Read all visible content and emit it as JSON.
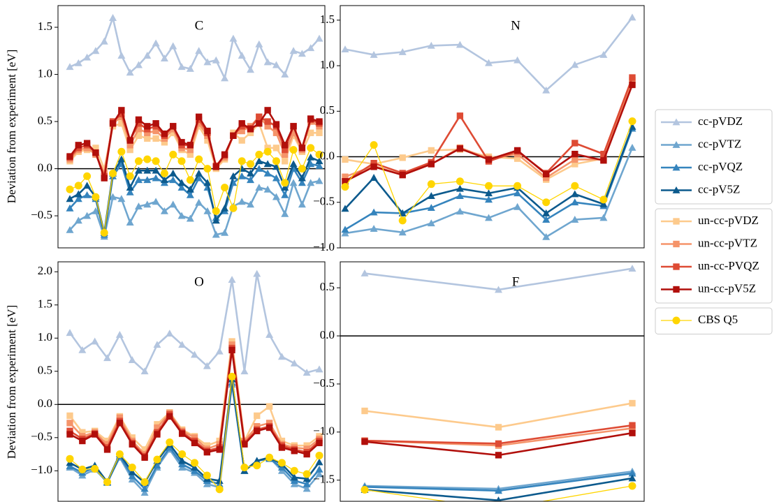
{
  "chart_data": [
    {
      "type": "line",
      "title": "C",
      "ylabel": "Deviation from experiment [eV]",
      "ylim": [
        -0.84,
        1.73
      ],
      "yticks": [
        {
          "value": -0.5,
          "label": "−0.5"
        },
        {
          "value": 0,
          "label": "0.0"
        },
        0.5,
        {
          "value": 1,
          "label": "1.0"
        },
        1.5
      ],
      "hline": 0,
      "series": [
        {
          "name": "cc-pVDZ",
          "color": "#b3c5df",
          "marker": "triangle",
          "values": [
            1.08,
            1.12,
            1.18,
            1.25,
            1.35,
            1.6,
            1.2,
            1.02,
            1.1,
            1.2,
            1.33,
            1.17,
            1.3,
            1.08,
            1.06,
            1.25,
            1.13,
            1.15,
            0.96,
            1.38,
            1.2,
            1.05,
            1.32,
            1.13,
            1.1,
            1.0,
            1.25,
            1.22,
            1.28,
            1.38
          ]
        },
        {
          "name": "cc-pVTZ",
          "color": "#6fa6cf",
          "marker": "triangle",
          "values": [
            -0.65,
            -0.55,
            -0.5,
            -0.45,
            -0.72,
            -0.3,
            -0.32,
            -0.57,
            -0.4,
            -0.38,
            -0.35,
            -0.45,
            -0.38,
            -0.5,
            -0.53,
            -0.36,
            -0.45,
            -0.7,
            -0.68,
            -0.4,
            -0.35,
            -0.38,
            -0.2,
            -0.22,
            -0.3,
            -0.48,
            -0.15,
            -0.38,
            -0.15,
            -0.13
          ]
        },
        {
          "name": "cc-pVQZ",
          "color": "#3584bd",
          "marker": "triangle",
          "values": [
            -0.42,
            -0.32,
            -0.28,
            -0.32,
            -0.7,
            -0.08,
            0.05,
            -0.25,
            -0.12,
            -0.12,
            -0.1,
            -0.15,
            -0.12,
            -0.2,
            -0.28,
            -0.1,
            -0.2,
            -0.52,
            -0.45,
            -0.15,
            -0.08,
            -0.12,
            0.0,
            -0.05,
            -0.1,
            -0.28,
            0.0,
            -0.15,
            0.05,
            0.03
          ]
        },
        {
          "name": "cc-pV5Z",
          "color": "#0c5a8d",
          "marker": "triangle",
          "values": [
            -0.32,
            -0.27,
            -0.18,
            -0.3,
            -0.68,
            -0.05,
            0.1,
            -0.2,
            -0.02,
            -0.02,
            -0.02,
            -0.12,
            -0.05,
            -0.15,
            -0.22,
            -0.05,
            -0.15,
            -0.55,
            -0.42,
            -0.08,
            0.0,
            -0.05,
            0.08,
            0.05,
            0.02,
            -0.2,
            0.05,
            -0.1,
            0.12,
            0.08
          ]
        },
        {
          "name": "un-cc-pVDZ",
          "color": "#fdca8c",
          "marker": "square",
          "values": [
            0.08,
            0.18,
            0.2,
            0.22,
            0.0,
            0.45,
            0.48,
            0.2,
            0.35,
            0.32,
            0.32,
            0.28,
            0.38,
            0.2,
            0.15,
            0.45,
            0.3,
            0.0,
            0.1,
            0.38,
            0.3,
            0.38,
            0.48,
            0.22,
            0.22,
            0.08,
            0.35,
            0.18,
            0.38,
            0.38
          ]
        },
        {
          "name": "un-cc-pVTZ",
          "color": "#f5946a",
          "marker": "square",
          "values": [
            0.1,
            0.2,
            0.22,
            0.15,
            -0.05,
            0.48,
            0.55,
            0.25,
            0.42,
            0.38,
            0.4,
            0.32,
            0.42,
            0.22,
            0.2,
            0.48,
            0.35,
            0.02,
            0.12,
            0.35,
            0.4,
            0.45,
            0.55,
            0.45,
            0.38,
            0.15,
            0.38,
            0.2,
            0.5,
            0.45
          ]
        },
        {
          "name": "un-cc-PVQZ",
          "color": "#de4b34",
          "marker": "square",
          "values": [
            0.12,
            0.22,
            0.25,
            0.17,
            -0.08,
            0.5,
            0.58,
            0.3,
            0.48,
            0.42,
            0.45,
            0.35,
            0.45,
            0.25,
            0.25,
            0.52,
            0.38,
            0.03,
            0.14,
            0.35,
            0.45,
            0.43,
            0.55,
            0.5,
            0.45,
            0.2,
            0.45,
            0.22,
            0.52,
            0.48
          ]
        },
        {
          "name": "un-cc-pV5Z",
          "color": "#b10f0b",
          "marker": "square",
          "values": [
            0.13,
            0.25,
            0.27,
            0.17,
            -0.1,
            0.48,
            0.62,
            0.3,
            0.52,
            0.45,
            0.48,
            0.37,
            0.45,
            0.28,
            0.25,
            0.55,
            0.4,
            0.02,
            0.15,
            0.35,
            0.48,
            0.42,
            0.48,
            0.62,
            0.47,
            0.25,
            0.45,
            0.22,
            0.53,
            0.5
          ]
        },
        {
          "name": "CBS Q5",
          "color": "#ffd500",
          "marker": "circle",
          "values": [
            -0.22,
            -0.18,
            -0.08,
            -0.3,
            -0.68,
            -0.05,
            0.18,
            -0.08,
            0.08,
            0.1,
            0.08,
            -0.05,
            0.15,
            0.08,
            -0.12,
            0.1,
            0.0,
            -0.45,
            -0.2,
            -0.42,
            0.08,
            0.05,
            0.15,
            0.18,
            0.08,
            -0.15,
            0.2,
            0.0,
            0.22,
            0.15
          ]
        }
      ]
    },
    {
      "type": "line",
      "title": "N",
      "ylim": [
        -1.0,
        1.66
      ],
      "yticks": [
        {
          "value": -1,
          "label": "−1.0"
        },
        {
          "value": -0.5,
          "label": "−0.5"
        },
        {
          "value": 0,
          "label": "0.0"
        },
        0.5,
        {
          "value": 1,
          "label": "1.0"
        },
        1.5
      ],
      "hline": 0,
      "series": [
        {
          "name": "cc-pVDZ",
          "color": "#b3c5df",
          "marker": "triangle",
          "values": [
            1.18,
            1.12,
            1.15,
            1.22,
            1.23,
            1.03,
            1.06,
            0.73,
            1.01,
            1.12,
            1.53
          ]
        },
        {
          "name": "cc-pVTZ",
          "color": "#6fa6cf",
          "marker": "triangle",
          "values": [
            -0.84,
            -0.79,
            -0.83,
            -0.73,
            -0.6,
            -0.67,
            -0.55,
            -0.88,
            -0.69,
            -0.67,
            0.1
          ]
        },
        {
          "name": "cc-pVQZ",
          "color": "#3584bd",
          "marker": "triangle",
          "values": [
            -0.8,
            -0.61,
            -0.62,
            -0.56,
            -0.43,
            -0.47,
            -0.4,
            -0.69,
            -0.5,
            -0.54,
            0.31
          ]
        },
        {
          "name": "cc-pV5Z",
          "color": "#0c5a8d",
          "marker": "triangle",
          "values": [
            -0.57,
            -0.23,
            -0.62,
            -0.43,
            -0.35,
            -0.4,
            -0.34,
            -0.62,
            -0.41,
            -0.52,
            0.33
          ]
        },
        {
          "name": "un-cc-pVDZ",
          "color": "#fdca8c",
          "marker": "square",
          "values": [
            -0.03,
            -0.08,
            -0.01,
            0.07,
            0.08,
            0.0,
            -0.02,
            -0.25,
            -0.08,
            -0.02,
            0.8
          ]
        },
        {
          "name": "un-cc-pVTZ",
          "color": "#f5946a",
          "marker": "square",
          "values": [
            -0.22,
            -0.1,
            -0.2,
            -0.08,
            0.1,
            -0.02,
            0.03,
            -0.23,
            -0.03,
            -0.03,
            0.84
          ]
        },
        {
          "name": "un-cc-PVQZ",
          "color": "#de4b34",
          "marker": "square",
          "values": [
            -0.27,
            -0.07,
            -0.18,
            -0.06,
            0.45,
            -0.05,
            0.06,
            -0.18,
            0.15,
            0.03,
            0.87
          ]
        },
        {
          "name": "un-cc-pV5Z",
          "color": "#b10f0b",
          "marker": "square",
          "values": [
            -0.27,
            -0.11,
            -0.2,
            -0.08,
            0.09,
            -0.03,
            0.07,
            -0.19,
            0.03,
            -0.04,
            0.79
          ]
        },
        {
          "name": "CBS Q5",
          "color": "#ffd500",
          "marker": "circle",
          "values": [
            -0.33,
            0.13,
            -0.7,
            -0.3,
            -0.27,
            -0.32,
            -0.32,
            -0.5,
            -0.32,
            -0.47,
            0.39
          ]
        }
      ]
    },
    {
      "type": "line",
      "title": "O",
      "ylabel": "Deviation from experiment [eV]",
      "ylim": [
        -1.46,
        2.15
      ],
      "yticks": [
        {
          "value": -1,
          "label": "−1.0"
        },
        {
          "value": -0.5,
          "label": "−0.5"
        },
        {
          "value": 0,
          "label": "0.0"
        },
        0.5,
        {
          "value": 1,
          "label": "1.0"
        },
        1.5,
        {
          "value": 2,
          "label": "2.0"
        }
      ],
      "hline": 0,
      "series": [
        {
          "name": "cc-pVDZ",
          "color": "#b3c5df",
          "marker": "triangle",
          "values": [
            1.08,
            0.82,
            0.95,
            0.7,
            1.05,
            0.67,
            0.5,
            0.9,
            1.07,
            0.9,
            0.75,
            0.58,
            0.8,
            1.88,
            0.5,
            1.97,
            1.05,
            0.72,
            0.62,
            0.48,
            0.53
          ]
        },
        {
          "name": "cc-pVTZ",
          "color": "#6fa6cf",
          "marker": "triangle",
          "values": [
            -0.95,
            -1.07,
            -0.98,
            -1.17,
            -0.8,
            -1.13,
            -1.33,
            -0.95,
            -0.68,
            -0.95,
            -1.03,
            -1.2,
            -1.25,
            0.3,
            -1.0,
            -0.85,
            -0.8,
            -1.0,
            -1.2,
            -1.27,
            -1.05
          ]
        },
        {
          "name": "cc-pVQZ",
          "color": "#3584bd",
          "marker": "triangle",
          "values": [
            -0.93,
            -1.03,
            -0.95,
            -1.18,
            -0.78,
            -1.08,
            -1.27,
            -0.92,
            -0.65,
            -0.9,
            -1.0,
            -1.15,
            -1.2,
            0.33,
            -1.0,
            -0.85,
            -0.82,
            -0.95,
            -1.15,
            -1.2,
            -0.98
          ]
        },
        {
          "name": "cc-pV5Z",
          "color": "#0c5a8d",
          "marker": "triangle",
          "values": [
            -0.88,
            -0.98,
            -0.92,
            -1.17,
            -0.75,
            -1.02,
            -1.18,
            -0.85,
            -0.6,
            -0.85,
            -0.95,
            -1.12,
            -1.15,
            0.38,
            -1.0,
            -0.85,
            -0.8,
            -0.9,
            -1.1,
            -1.12,
            -0.87
          ]
        },
        {
          "name": "un-cc-pVDZ",
          "color": "#fdca8c",
          "marker": "square",
          "values": [
            -0.17,
            -0.42,
            -0.4,
            -0.55,
            -0.18,
            -0.5,
            -0.68,
            -0.3,
            -0.12,
            -0.38,
            -0.48,
            -0.62,
            -0.55,
            0.95,
            -0.55,
            -0.17,
            -0.03,
            -0.55,
            -0.62,
            -0.62,
            -0.48
          ]
        },
        {
          "name": "un-cc-pVTZ",
          "color": "#f5946a",
          "marker": "square",
          "values": [
            -0.28,
            -0.48,
            -0.42,
            -0.6,
            -0.2,
            -0.55,
            -0.75,
            -0.35,
            -0.13,
            -0.4,
            -0.5,
            -0.67,
            -0.6,
            0.9,
            -0.55,
            -0.33,
            -0.28,
            -0.6,
            -0.65,
            -0.67,
            -0.52
          ]
        },
        {
          "name": "un-cc-PVQZ",
          "color": "#de4b34",
          "marker": "square",
          "values": [
            -0.4,
            -0.52,
            -0.44,
            -0.65,
            -0.25,
            -0.58,
            -0.78,
            -0.42,
            -0.15,
            -0.42,
            -0.55,
            -0.7,
            -0.65,
            0.85,
            -0.58,
            -0.38,
            -0.33,
            -0.62,
            -0.68,
            -0.72,
            -0.55
          ]
        },
        {
          "name": "un-cc-pV5Z",
          "color": "#b10f0b",
          "marker": "square",
          "values": [
            -0.45,
            -0.55,
            -0.45,
            -0.68,
            -0.28,
            -0.6,
            -0.8,
            -0.45,
            -0.18,
            -0.44,
            -0.58,
            -0.72,
            -0.68,
            0.82,
            -0.6,
            -0.4,
            -0.35,
            -0.65,
            -0.7,
            -0.75,
            -0.58
          ]
        },
        {
          "name": "CBS Q5",
          "color": "#ffd500",
          "marker": "circle",
          "values": [
            -0.82,
            -0.98,
            -0.97,
            -1.17,
            -0.75,
            -0.95,
            -1.17,
            -0.83,
            -0.57,
            -0.75,
            -0.88,
            -1.07,
            -1.28,
            0.42,
            -0.95,
            -0.92,
            -0.8,
            -0.88,
            -1.0,
            -1.05,
            -0.77
          ]
        }
      ]
    },
    {
      "type": "line",
      "title": "F",
      "ylim": [
        -1.72,
        0.77
      ],
      "yticks": [
        {
          "value": -1.5,
          "label": "−1.5"
        },
        {
          "value": -1,
          "label": "−1.0"
        },
        {
          "value": -0.5,
          "label": "−0.5"
        },
        {
          "value": 0,
          "label": "0.0"
        },
        0.5
      ],
      "hline": 0,
      "series": [
        {
          "name": "cc-pVDZ",
          "color": "#b3c5df",
          "marker": "triangle",
          "values": [
            0.65,
            0.48,
            0.7
          ]
        },
        {
          "name": "cc-pVTZ",
          "color": "#6fa6cf",
          "marker": "triangle",
          "values": [
            -1.56,
            -1.59,
            -1.41
          ]
        },
        {
          "name": "cc-pVQZ",
          "color": "#3584bd",
          "marker": "triangle",
          "values": [
            -1.57,
            -1.61,
            -1.43
          ]
        },
        {
          "name": "cc-pV5Z",
          "color": "#0c5a8d",
          "marker": "triangle",
          "values": [
            -1.6,
            -1.71,
            -1.48
          ]
        },
        {
          "name": "un-cc-pVDZ",
          "color": "#fdca8c",
          "marker": "square",
          "values": [
            -0.78,
            -0.95,
            -0.7
          ]
        },
        {
          "name": "un-cc-pVTZ",
          "color": "#f5946a",
          "marker": "square",
          "values": [
            -1.09,
            -1.14,
            -0.96
          ]
        },
        {
          "name": "un-cc-PVQZ",
          "color": "#de4b34",
          "marker": "square",
          "values": [
            -1.09,
            -1.12,
            -0.93
          ]
        },
        {
          "name": "un-cc-pV5Z",
          "color": "#b10f0b",
          "marker": "square",
          "values": [
            -1.1,
            -1.24,
            -1.01
          ]
        },
        {
          "name": "CBS Q5",
          "color": "#ffd500",
          "marker": "circle",
          "values": [
            -1.6,
            -1.8,
            -1.56
          ]
        }
      ]
    }
  ]
}
